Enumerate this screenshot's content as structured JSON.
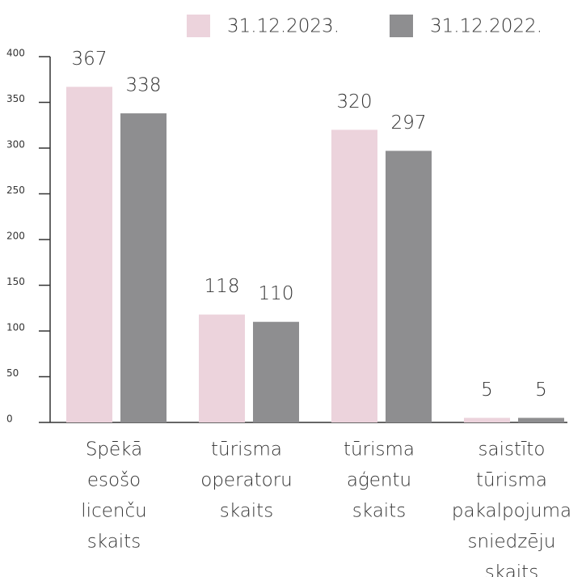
{
  "chart_data": {
    "type": "bar",
    "categories": [
      [
        "Spēkā",
        "esošo",
        "licenču",
        "skaits"
      ],
      [
        "tūrisma",
        "operatoru",
        "skaits"
      ],
      [
        "tūrisma",
        "aģentu",
        "skaits"
      ],
      [
        "saistīto",
        "tūrisma",
        "pakalpojuma",
        "sniedzēju",
        "skaits"
      ]
    ],
    "series": [
      {
        "name": "31.12.2023.",
        "color": "#ecd3dc",
        "values": [
          367,
          118,
          320,
          5
        ]
      },
      {
        "name": "31.12.2022.",
        "color": "#8e8e90",
        "values": [
          338,
          110,
          297,
          5
        ]
      }
    ],
    "ylim": [
      0,
      400
    ],
    "yticks": [
      0,
      50,
      100,
      150,
      200,
      250,
      300,
      350,
      400
    ],
    "legend": "top"
  }
}
